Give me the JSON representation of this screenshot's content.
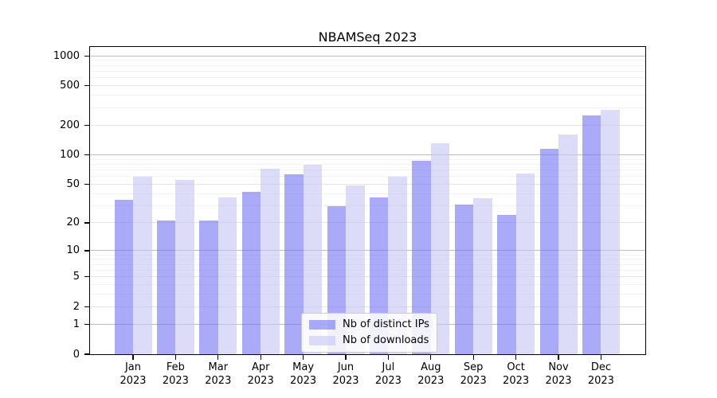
{
  "figure": {
    "background": "#ffffff"
  },
  "colors": {
    "spine": "#000000",
    "text": "#000000",
    "grid_major": "#bcbcbc",
    "grid_mid": "#e4e4e4",
    "grid_minor": "#f2f2f2",
    "legend_border": "#cccccc",
    "legend_bg": "#ffffff"
  },
  "chart_data": {
    "type": "bar",
    "title": "NBAMSeq 2023",
    "xlabel": "",
    "ylabel": "",
    "yscale": "log1p",
    "ylim": [
      0,
      1230
    ],
    "grid": "on",
    "legend_position": "lower center",
    "categories": [
      "Jan 2023",
      "Feb 2023",
      "Mar 2023",
      "Apr 2023",
      "May 2023",
      "Jun 2023",
      "Jul 2023",
      "Aug 2023",
      "Sep 2023",
      "Oct 2023",
      "Nov 2023",
      "Dec 2023"
    ],
    "x_tick_lines": [
      [
        "Jan",
        "2023"
      ],
      [
        "Feb",
        "2023"
      ],
      [
        "Mar",
        "2023"
      ],
      [
        "Apr",
        "2023"
      ],
      [
        "May",
        "2023"
      ],
      [
        "Jun",
        "2023"
      ],
      [
        "Jul",
        "2023"
      ],
      [
        "Aug",
        "2023"
      ],
      [
        "Sep",
        "2023"
      ],
      [
        "Oct",
        "2023"
      ],
      [
        "Nov",
        "2023"
      ],
      [
        "Dec",
        "2023"
      ]
    ],
    "series": [
      {
        "name": "Nb of distinct IPs",
        "slug": "distinct-ips",
        "color": "#7171F3",
        "opacity": 0.6,
        "values": [
          35,
          21,
          21,
          42,
          64,
          30,
          37,
          88,
          31,
          24,
          116,
          249
        ]
      },
      {
        "name": "Nb of downloads",
        "slug": "downloads",
        "color": "#C5C5F5",
        "opacity": 0.6,
        "values": [
          60,
          56,
          37,
          73,
          79,
          49,
          60,
          131,
          36,
          65,
          162,
          287
        ]
      }
    ],
    "y_axis": {
      "tick_values": [
        0,
        1,
        2,
        5,
        10,
        20,
        50,
        100,
        200,
        500,
        1000
      ],
      "tick_labels": [
        "0",
        "1",
        "2",
        "5",
        "10",
        "20",
        "50",
        "100",
        "200",
        "500",
        "1000"
      ],
      "major_gridlines": [
        1,
        10,
        100,
        1000
      ],
      "mid_gridlines": [
        2,
        5,
        20,
        50,
        200,
        500
      ],
      "minor_gridlines": [
        3,
        4,
        6,
        7,
        8,
        9,
        30,
        40,
        60,
        70,
        80,
        90,
        300,
        400,
        600,
        700,
        800,
        900
      ]
    }
  }
}
